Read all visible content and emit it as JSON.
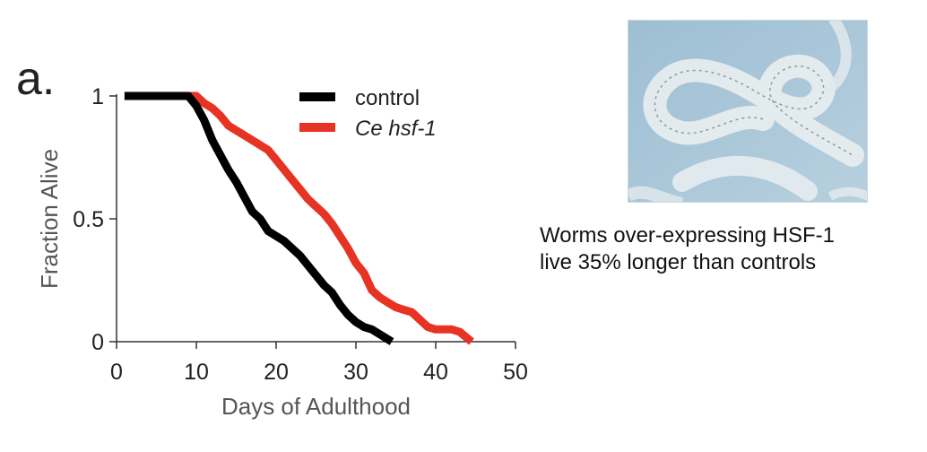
{
  "panel_label": "a.",
  "caption": {
    "line1": "Worms over-expressing HSF-1",
    "line2": "live 35% longer than controls"
  },
  "photo": {
    "icon": "microscopy-worm-photo",
    "background_color": "#a9c6d8"
  },
  "chart_data": {
    "type": "line",
    "title": "",
    "xlabel": "Days of Adulthood",
    "ylabel": "Fraction Alive",
    "xlim": [
      0,
      50
    ],
    "ylim": [
      0,
      1
    ],
    "xticks": [
      0,
      10,
      20,
      30,
      40,
      50
    ],
    "yticks": [
      0,
      0.5,
      1
    ],
    "ytick_labels": [
      "0",
      "0.5",
      "1"
    ],
    "legend_position": "top-right",
    "series": [
      {
        "name": "control",
        "name_style": "normal",
        "color": "#000000",
        "x": [
          1,
          9,
          10,
          11,
          12,
          13,
          14,
          15,
          16,
          17,
          18,
          19,
          20,
          21,
          22,
          23,
          24,
          25,
          26,
          27,
          28,
          29,
          30,
          31,
          32,
          33,
          34.5
        ],
        "y": [
          1,
          1,
          0.96,
          0.9,
          0.82,
          0.76,
          0.7,
          0.65,
          0.59,
          0.53,
          0.5,
          0.45,
          0.43,
          0.41,
          0.38,
          0.35,
          0.31,
          0.27,
          0.23,
          0.2,
          0.15,
          0.11,
          0.08,
          0.06,
          0.05,
          0.03,
          0
        ]
      },
      {
        "name": "Ce hsf-1",
        "name_style": "italic",
        "color": "#e63323",
        "x": [
          1,
          10,
          11,
          12,
          13,
          14,
          15,
          16,
          17,
          18,
          19,
          20,
          21,
          22,
          23,
          24,
          25,
          26,
          27,
          28,
          29,
          30,
          31,
          32,
          33,
          34,
          35,
          36,
          37,
          38,
          39,
          40,
          41,
          42,
          43,
          44.5
        ],
        "y": [
          1,
          1,
          0.97,
          0.95,
          0.92,
          0.88,
          0.86,
          0.84,
          0.82,
          0.8,
          0.78,
          0.74,
          0.7,
          0.66,
          0.62,
          0.58,
          0.55,
          0.52,
          0.48,
          0.43,
          0.38,
          0.32,
          0.28,
          0.21,
          0.18,
          0.16,
          0.14,
          0.13,
          0.12,
          0.09,
          0.06,
          0.05,
          0.05,
          0.05,
          0.04,
          0
        ]
      }
    ]
  }
}
